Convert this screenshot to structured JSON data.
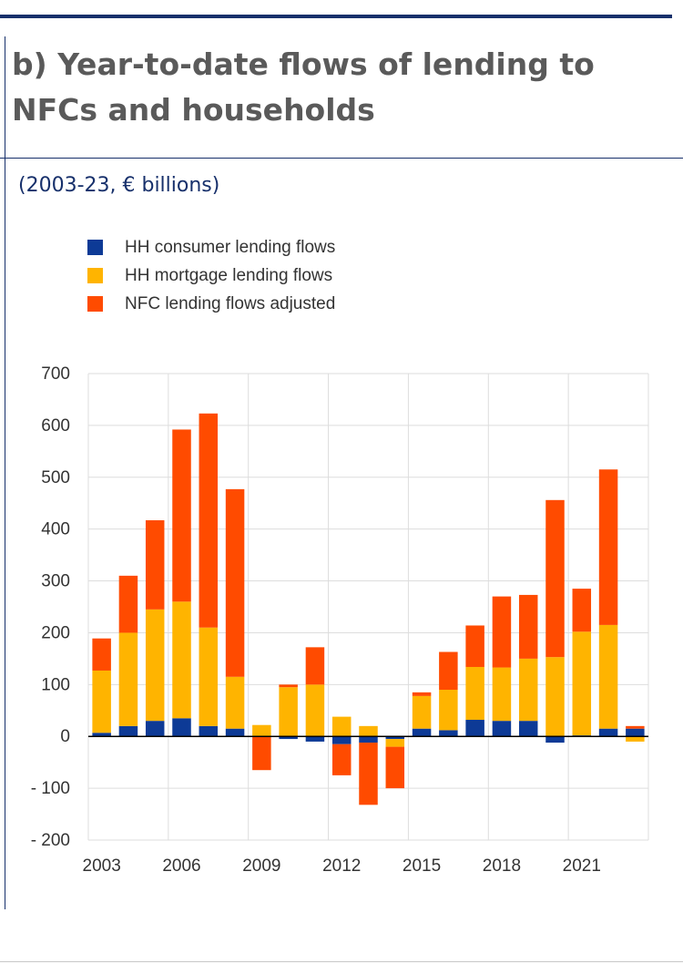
{
  "title": "b) Year-to-date flows of lending to NFCs and households",
  "subtitle": "(2003-23, € billions)",
  "colors": {
    "consumer": "#0d3a96",
    "mortgage": "#ffb400",
    "nfc": "#ff4b00",
    "grid": "#dddddd",
    "axis": "#000000",
    "rule": "#17306b"
  },
  "chart_data": {
    "type": "bar",
    "stacked": true,
    "x": [
      2003,
      2004,
      2005,
      2006,
      2007,
      2008,
      2009,
      2010,
      2011,
      2012,
      2013,
      2014,
      2015,
      2016,
      2017,
      2018,
      2019,
      2020,
      2021,
      2022,
      2023
    ],
    "x_tick_labels": [
      "2003",
      "2006",
      "2009",
      "2012",
      "2015",
      "2018",
      "2021"
    ],
    "series": [
      {
        "name": "HH consumer lending flows",
        "key": "consumer",
        "values": [
          7,
          20,
          30,
          35,
          20,
          15,
          0,
          -5,
          -10,
          -15,
          -12,
          -5,
          15,
          12,
          32,
          30,
          30,
          -12,
          2,
          15,
          15
        ]
      },
      {
        "name": "HH mortgage lending flows",
        "key": "mortgage",
        "values": [
          120,
          180,
          215,
          225,
          190,
          100,
          22,
          95,
          100,
          38,
          20,
          -15,
          63,
          78,
          102,
          103,
          120,
          153,
          200,
          200,
          -10
        ]
      },
      {
        "name": "NFC lending flows adjusted",
        "key": "nfc",
        "values": [
          62,
          110,
          172,
          332,
          413,
          362,
          -65,
          5,
          72,
          -60,
          -120,
          -80,
          7,
          73,
          80,
          137,
          123,
          303,
          83,
          300,
          5
        ]
      }
    ],
    "ylim": [
      -200,
      700
    ],
    "yticks": [
      -200,
      -100,
      0,
      100,
      200,
      300,
      400,
      500,
      600,
      700
    ],
    "legend_position": "top-left",
    "grid": true
  }
}
